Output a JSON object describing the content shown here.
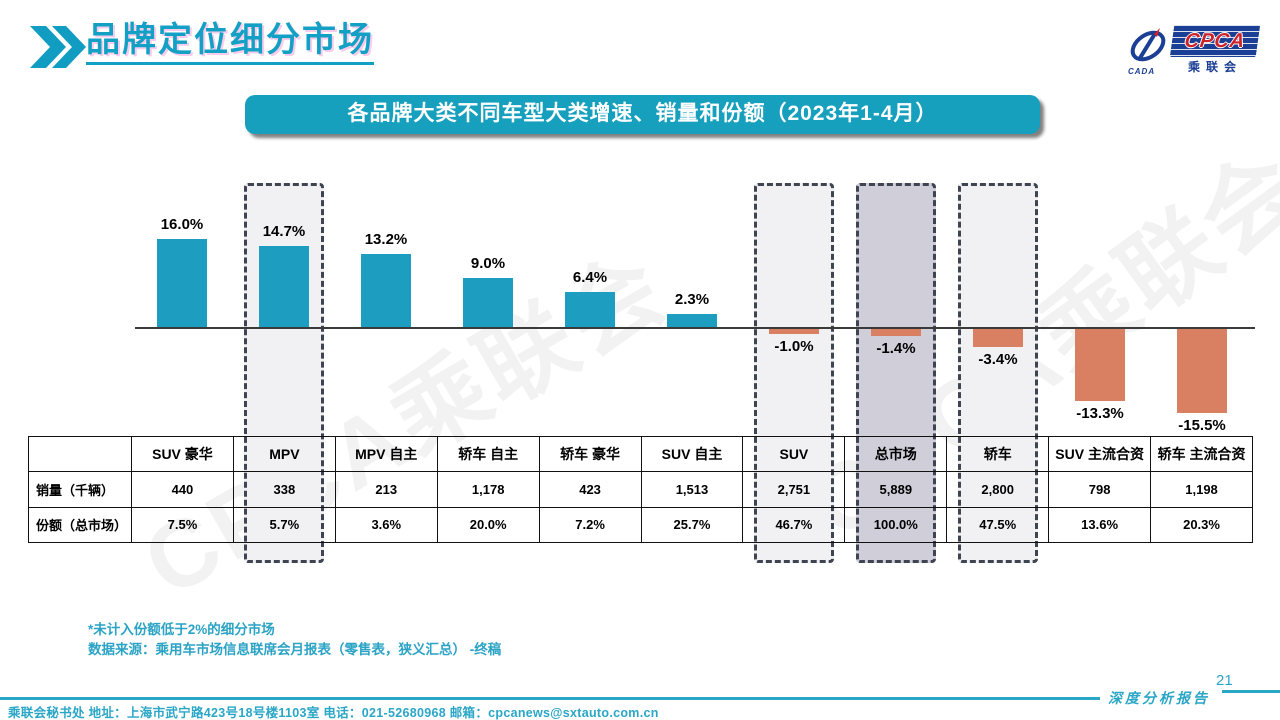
{
  "header": {
    "title": "品牌定位细分市场"
  },
  "logo": {
    "cpca": "CPCA",
    "cada": "CADA",
    "chinese": "乘联会"
  },
  "banner": {
    "title": "各品牌大类不同车型大类增速、销量和份额（2023年1-4月）"
  },
  "watermark": "CPCA乘联会",
  "chart_data": {
    "type": "bar",
    "title": "各品牌大类不同车型大类增速、销量和份额（2023年1-4月）",
    "categories": [
      "SUV 豪华",
      "MPV",
      "MPV 自主",
      "轿车 自主",
      "轿车 豪华",
      "SUV 自主",
      "SUV",
      "总市场",
      "轿车",
      "SUV 主流合资",
      "轿车 主流合资"
    ],
    "values": [
      16.0,
      14.7,
      13.2,
      9.0,
      6.4,
      2.3,
      -1.0,
      -1.4,
      -3.4,
      -13.3,
      -15.5
    ],
    "labels": [
      "16.0%",
      "14.7%",
      "13.2%",
      "9.0%",
      "6.4%",
      "2.3%",
      "-1.0%",
      "-1.4%",
      "-3.4%",
      "-13.3%",
      "-15.5%"
    ],
    "positive_color": "#1d9dc0",
    "negative_color": "#d98062",
    "ylim": [
      -18,
      18
    ],
    "grid": false,
    "legend": "none",
    "highlights": [
      {
        "category": "MPV",
        "fill": "#f1f1f3"
      },
      {
        "category": "SUV",
        "fill": "#f1f1f3"
      },
      {
        "category": "总市场",
        "fill": "#cfced9"
      },
      {
        "category": "轿车",
        "fill": "#f1f1f3"
      }
    ],
    "table": {
      "row_labels": [
        "销量（千辆）",
        "份额（总市场）"
      ],
      "sales": [
        "440",
        "338",
        "213",
        "1,178",
        "423",
        "1,513",
        "2,751",
        "5,889",
        "2,800",
        "798",
        "1,198"
      ],
      "share": [
        "7.5%",
        "5.7%",
        "3.6%",
        "20.0%",
        "7.2%",
        "25.7%",
        "46.7%",
        "100.0%",
        "47.5%",
        "13.6%",
        "20.3%"
      ]
    }
  },
  "footnotes": {
    "line1": "*未计入份额低于2%的细分市场",
    "line2": "数据来源：乘用车市场信息联席会月报表（零售表，狭义汇总） -终稿"
  },
  "footer": {
    "contact": "乘联会秘书处   地址：上海市武宁路423号18号楼1103室  电话：021-52680968   邮箱：cpcanews@sxtauto.com.cn",
    "report": "深度分析报告",
    "page": "21"
  }
}
